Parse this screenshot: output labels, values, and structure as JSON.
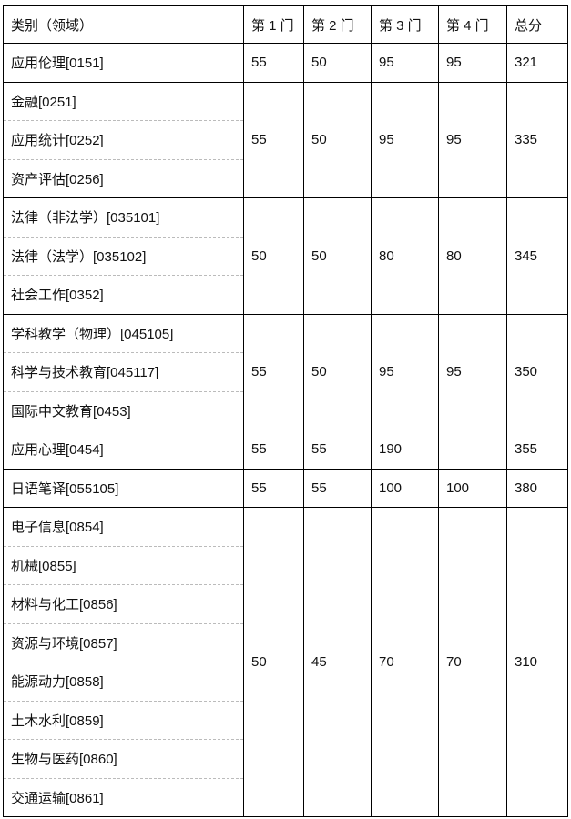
{
  "headers": [
    "类别（领域）",
    "第 1 门",
    "第 2 门",
    "第 3 门",
    "第 4 门",
    "总分"
  ],
  "groups": [
    {
      "categories": [
        "应用伦理[0151]"
      ],
      "scores": [
        "55",
        "50",
        "95",
        "95",
        "321"
      ]
    },
    {
      "categories": [
        "金融[0251]",
        "应用统计[0252]",
        "资产评估[0256]"
      ],
      "scores": [
        "55",
        "50",
        "95",
        "95",
        "335"
      ]
    },
    {
      "categories": [
        "法律（非法学）[035101]",
        "法律（法学）[035102]",
        "社会工作[0352]"
      ],
      "scores": [
        "50",
        "50",
        "80",
        "80",
        "345"
      ]
    },
    {
      "categories": [
        "学科教学（物理）[045105]",
        "科学与技术教育[045117]",
        "国际中文教育[0453]"
      ],
      "scores": [
        "55",
        "50",
        "95",
        "95",
        "350"
      ]
    },
    {
      "categories": [
        "应用心理[0454]"
      ],
      "scores": [
        "55",
        "55",
        "190",
        "",
        "355"
      ]
    },
    {
      "categories": [
        "日语笔译[055105]"
      ],
      "scores": [
        "55",
        "55",
        "100",
        "100",
        "380"
      ]
    },
    {
      "categories": [
        "电子信息[0854]",
        "机械[0855]",
        "材料与化工[0856]",
        "资源与环境[0857]",
        "能源动力[0858]",
        "土木水利[0859]",
        "生物与医药[0860]",
        "交通运输[0861]"
      ],
      "scores": [
        "50",
        "45",
        "70",
        "70",
        "310"
      ]
    }
  ]
}
